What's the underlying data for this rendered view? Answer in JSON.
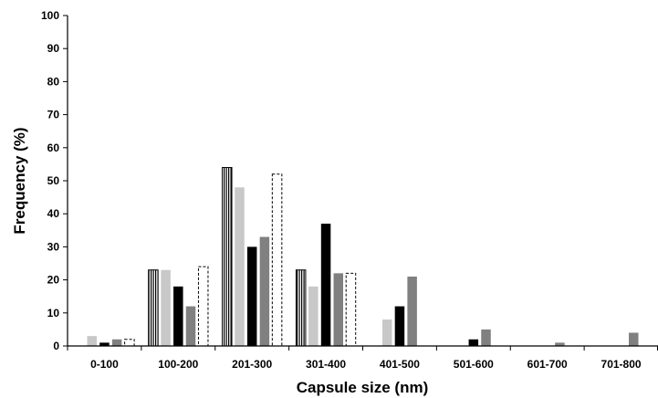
{
  "chart_data": {
    "type": "bar",
    "title": "",
    "xlabel": "Capsule size (nm)",
    "ylabel": "Frequency (%)",
    "ylim": [
      0,
      100
    ],
    "yticks": [
      0,
      10,
      20,
      30,
      40,
      50,
      60,
      70,
      80,
      90,
      100
    ],
    "grid": false,
    "legend": "none",
    "categories": [
      "0-100",
      "100-200",
      "201-300",
      "301-400",
      "401-500",
      "501-600",
      "601-700",
      "701-800"
    ],
    "series": [
      {
        "style": "vertical-striped",
        "color": "#ffffff",
        "values": [
          0,
          23,
          54,
          23,
          0,
          0,
          0,
          0
        ]
      },
      {
        "style": "solid",
        "color": "#c8c8c8",
        "values": [
          3,
          23,
          48,
          18,
          8,
          0,
          0,
          0
        ]
      },
      {
        "style": "solid",
        "color": "#000000",
        "values": [
          1,
          18,
          30,
          37,
          12,
          2,
          0,
          0
        ]
      },
      {
        "style": "solid",
        "color": "#808080",
        "values": [
          2,
          12,
          33,
          22,
          21,
          5,
          1,
          4
        ]
      },
      {
        "style": "dashed-outline",
        "color": "#ffffff",
        "values": [
          2,
          24,
          52,
          22,
          0,
          0,
          0,
          0
        ]
      }
    ]
  }
}
